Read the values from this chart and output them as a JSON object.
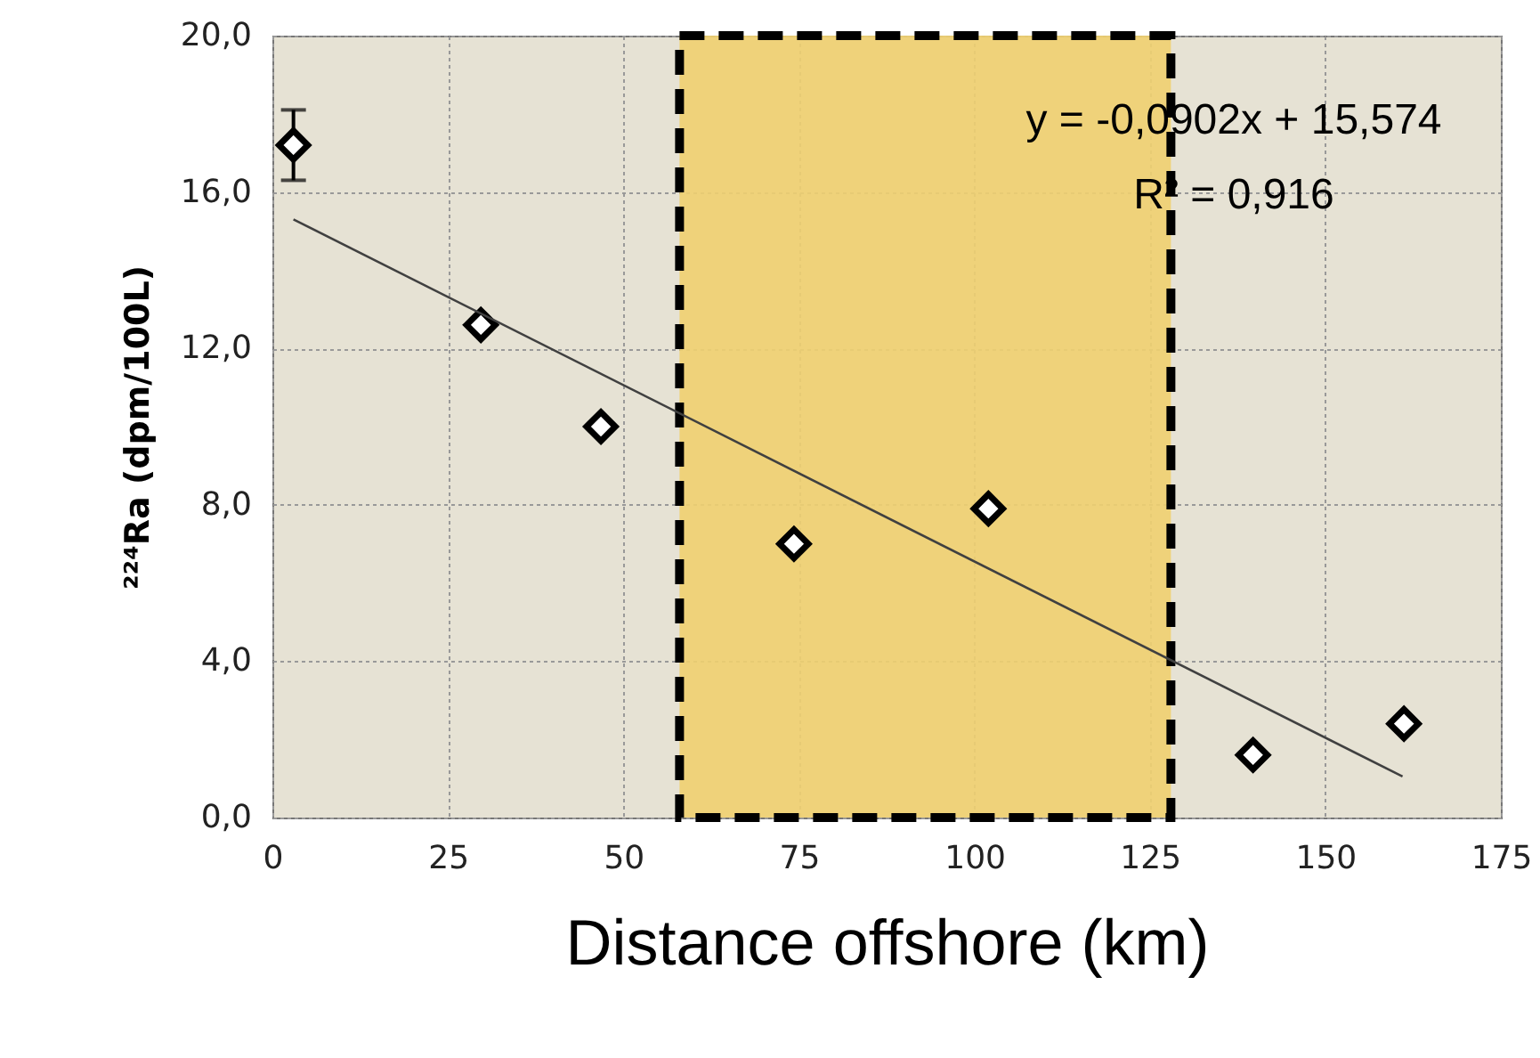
{
  "chart_data": {
    "type": "scatter",
    "xlabel": "Distance offshore (km)",
    "ylabel": "²²⁴Ra  (dpm/100L)",
    "xlim": [
      0,
      175
    ],
    "xticks": [
      0,
      25,
      50,
      75,
      100,
      125,
      150,
      175
    ],
    "ylim": [
      0,
      20
    ],
    "yticks": [
      {
        "value": 0,
        "label": "0,0"
      },
      {
        "value": 4,
        "label": "4,0"
      },
      {
        "value": 8,
        "label": "8,0"
      },
      {
        "value": 12,
        "label": "12,0"
      },
      {
        "value": 16,
        "label": "16,0"
      },
      {
        "value": 20,
        "label": "20,0"
      }
    ],
    "grid": true,
    "series": [
      {
        "marker": "diamond",
        "color": "#000000",
        "x": [
          3,
          29.7,
          46.8,
          74.3,
          102,
          139.7,
          161.2
        ],
        "values": [
          17.2,
          12.6,
          10,
          7,
          7.9,
          1.6,
          2.4
        ],
        "errors": [
          0.9,
          null,
          null,
          null,
          null,
          null,
          null
        ]
      },
      {
        "type": "line",
        "color": "#404040",
        "line_style": "solid",
        "x": [
          3,
          161
        ],
        "values": [
          15.3,
          1.05
        ]
      }
    ],
    "bands": [
      {
        "axis": "x",
        "from": 58,
        "to": 128,
        "color": "#f0d070"
      }
    ],
    "annotations": [
      "y = -0,0902x + 15,574",
      "R² = 0,916"
    ]
  }
}
